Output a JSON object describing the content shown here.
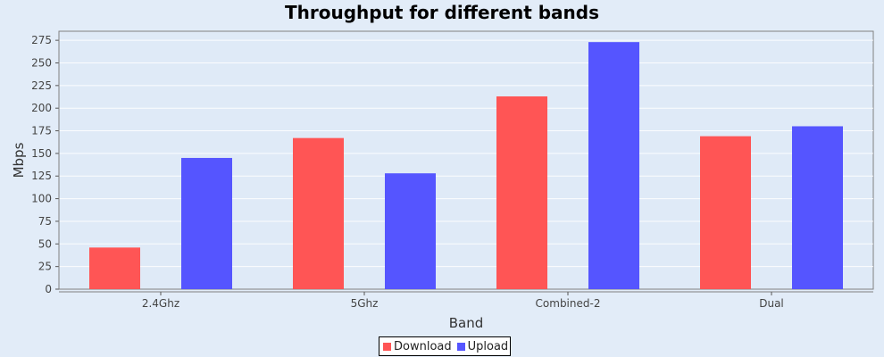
{
  "chart_data": {
    "type": "bar",
    "title": "Throughput for different bands",
    "xlabel": "Band",
    "ylabel": "Mbps",
    "categories": [
      "2.4Ghz",
      "5Ghz",
      "Combined-2",
      "Dual"
    ],
    "series": [
      {
        "name": "Download",
        "color": "#ff5555",
        "values": [
          46,
          167,
          213,
          169
        ]
      },
      {
        "name": "Upload",
        "color": "#5555ff",
        "values": [
          145,
          128,
          273,
          180
        ]
      }
    ],
    "ylim": [
      0,
      285
    ],
    "yticks": [
      0,
      25,
      50,
      75,
      100,
      125,
      150,
      175,
      200,
      225,
      250,
      275
    ],
    "grid": true,
    "legend": "bottom-center"
  }
}
